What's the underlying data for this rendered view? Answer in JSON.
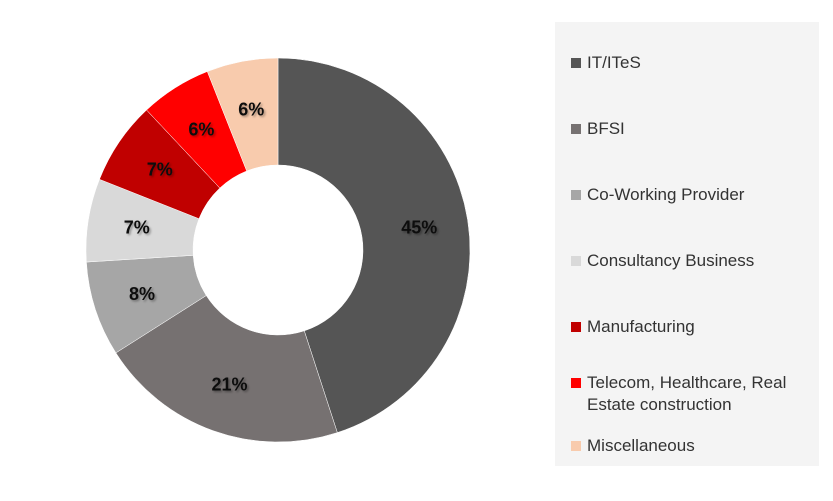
{
  "chart_data": {
    "type": "pie",
    "style": "donut",
    "categories": [
      "IT/ITeS",
      "BFSI",
      "Co-Working Provider",
      "Consultancy Business",
      "Manufacturing",
      "Telecom, Healthcare, Real Estate construction",
      "Miscellaneous"
    ],
    "values": [
      45,
      21,
      8,
      7,
      7,
      6,
      6
    ],
    "data_labels": [
      "45%",
      "21%",
      "8%",
      "7%",
      "7%",
      "6%",
      "6%"
    ],
    "colors": [
      "#555555",
      "#767171",
      "#a6a6a6",
      "#d9d9d9",
      "#c00000",
      "#ff0000",
      "#f8cbad"
    ],
    "legend_position": "right",
    "title": ""
  },
  "legend": {
    "items": [
      {
        "label": "IT/ITeS",
        "color": "#555555"
      },
      {
        "label": "BFSI",
        "color": "#767171"
      },
      {
        "label": "Co-Working Provider",
        "color": "#a6a6a6"
      },
      {
        "label": "Consultancy Business",
        "color": "#d9d9d9"
      },
      {
        "label": "Manufacturing",
        "color": "#c00000"
      },
      {
        "label": "Telecom, Healthcare, Real Estate construction",
        "color": "#ff0000"
      },
      {
        "label": "Miscellaneous",
        "color": "#f8cbad"
      }
    ]
  }
}
